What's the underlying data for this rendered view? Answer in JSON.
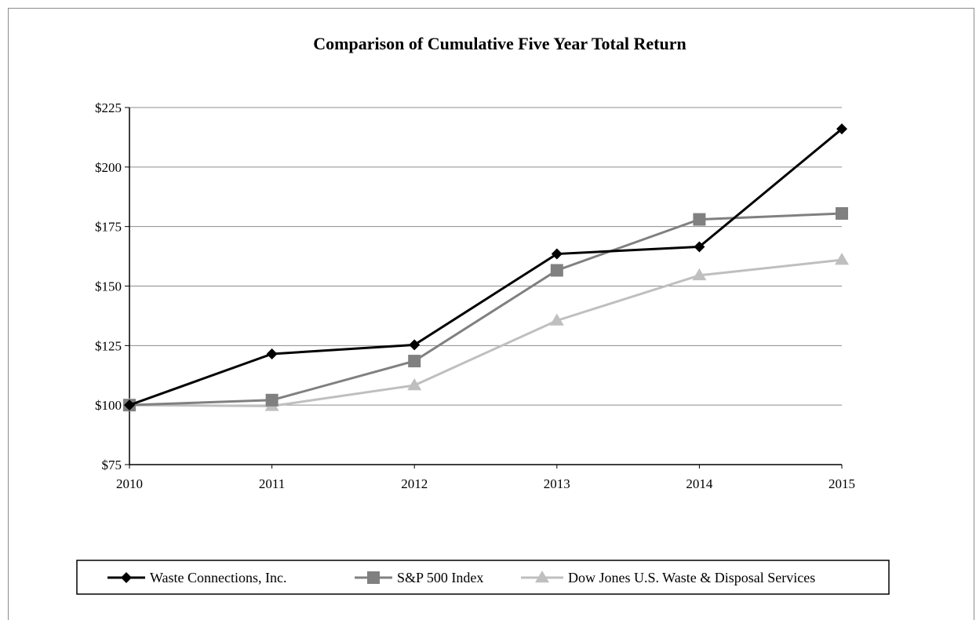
{
  "chart_data": {
    "type": "line",
    "title": "Comparison of Cumulative Five Year Total Return",
    "xlabel": "",
    "ylabel": "",
    "categories": [
      "2010",
      "2011",
      "2012",
      "2013",
      "2014",
      "2015"
    ],
    "ylim": [
      75,
      225
    ],
    "y_ticks": [
      75,
      100,
      125,
      150,
      175,
      200,
      225
    ],
    "y_tick_labels": [
      "$75",
      "$100",
      "$125",
      "$150",
      "$175",
      "$200",
      "$225"
    ],
    "grid": "horizontal",
    "legend_position": "bottom",
    "series": [
      {
        "name": "Waste Connections, Inc.",
        "values": [
          100,
          121.5,
          125.3,
          163.5,
          166.5,
          216
        ],
        "color": "#000000",
        "marker": "diamond"
      },
      {
        "name": "S&P 500 Index",
        "values": [
          100,
          102.1,
          118.5,
          156.6,
          178,
          180.5
        ],
        "color": "#808080",
        "marker": "square"
      },
      {
        "name": "Dow Jones U.S. Waste & Disposal Services",
        "values": [
          100,
          99.6,
          108.3,
          135.5,
          154.5,
          161
        ],
        "color": "#bfbfbf",
        "marker": "triangle"
      }
    ]
  }
}
